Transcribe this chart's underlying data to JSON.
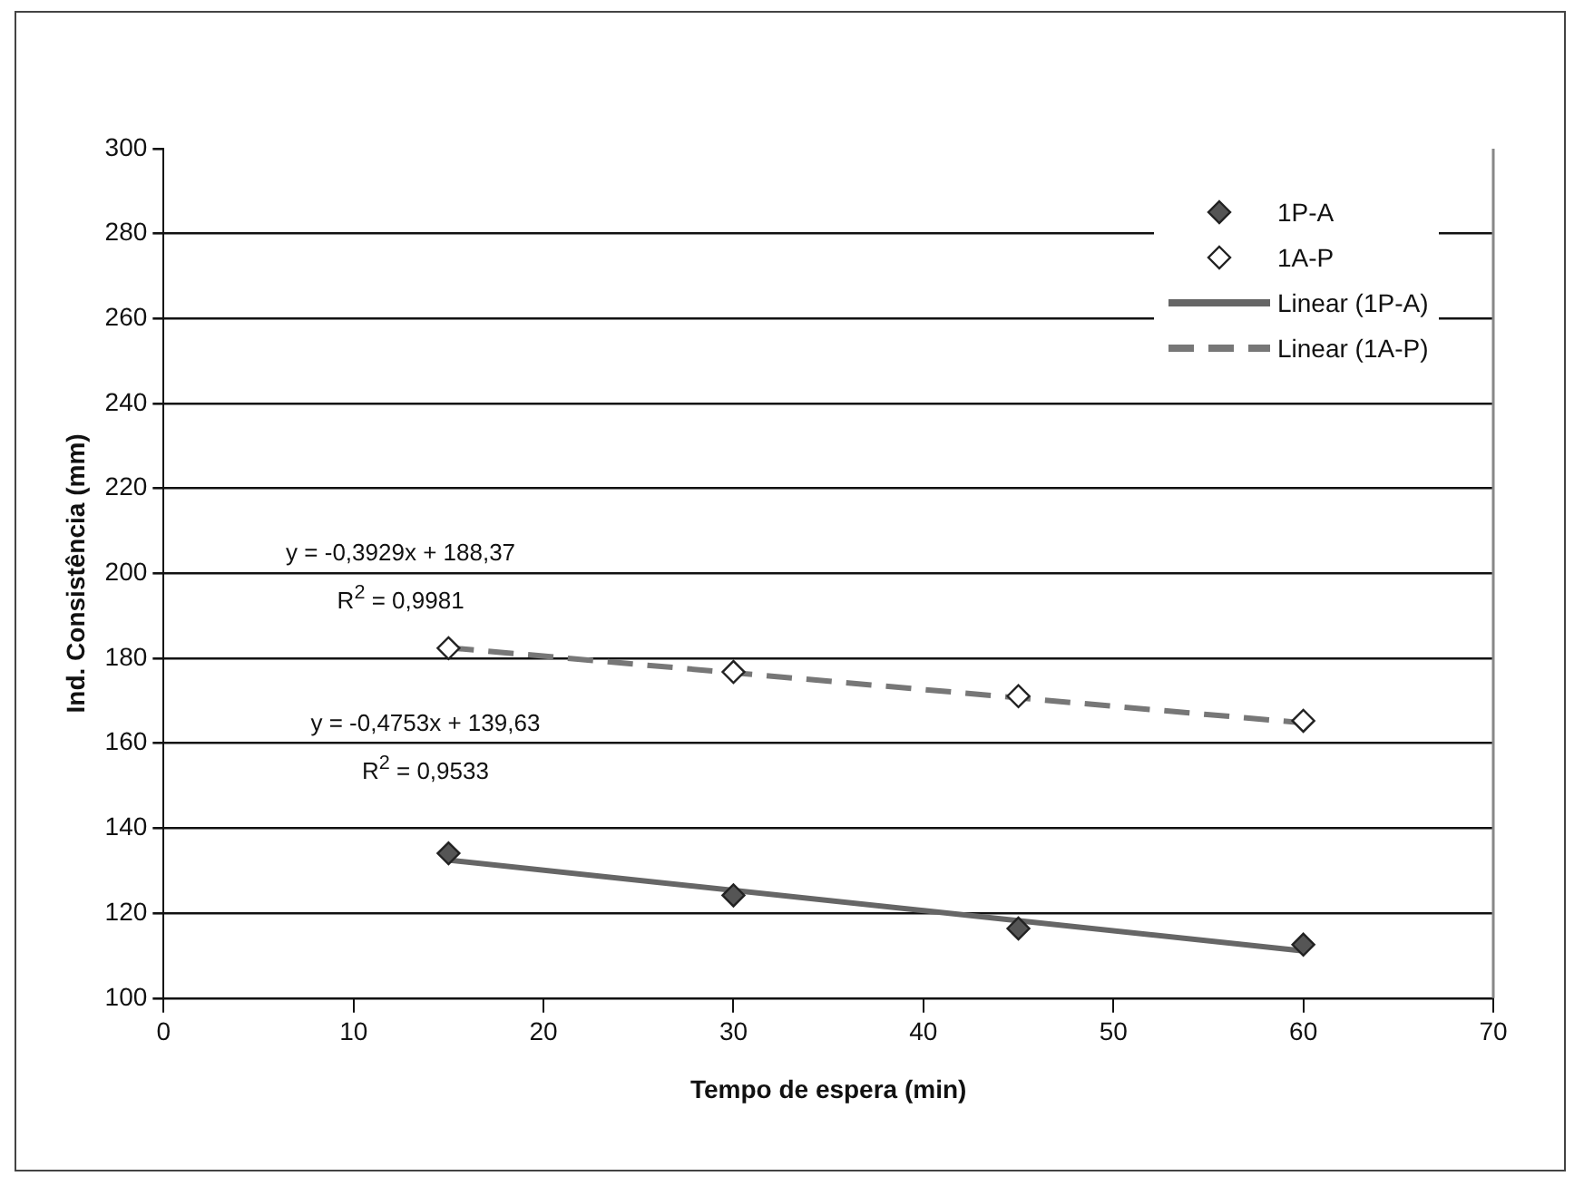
{
  "chart_data": {
    "type": "scatter",
    "xlabel": "Tempo de espera (min)",
    "ylabel": "Ind. Consistência (mm)",
    "xlim": [
      0,
      70
    ],
    "xticks": [
      0,
      10,
      20,
      30,
      40,
      50,
      60,
      70
    ],
    "ylim": [
      100,
      300
    ],
    "yticks": [
      100,
      120,
      140,
      160,
      180,
      200,
      220,
      240,
      260,
      280,
      300
    ],
    "grid": "y",
    "legend": "top right",
    "series": [
      {
        "name": "1P-A",
        "type": "scatter",
        "marker": "diamond",
        "color": "#555555",
        "x": [
          15,
          30,
          45,
          60
        ],
        "values": [
          134.1,
          124.2,
          116.4,
          112.6
        ]
      },
      {
        "name": "1A-P",
        "type": "scatter",
        "marker": "diamond",
        "color": "#ffffff",
        "x": [
          15,
          30,
          45,
          60
        ],
        "values": [
          182.4,
          176.8,
          171.1,
          165.3
        ]
      },
      {
        "name": "Linear (1P-A)",
        "type": "line",
        "marker": "none",
        "line_style": "solid",
        "color": "#666666",
        "x": [
          15,
          60
        ],
        "values": [
          132.5,
          111.1
        ]
      },
      {
        "name": "Linear (1A-P)",
        "type": "line",
        "marker": "none",
        "line_style": "dashed",
        "color": "#777777",
        "x": [
          15,
          60
        ],
        "values": [
          182.5,
          164.8
        ]
      }
    ],
    "annotations": [
      "y = -0,3929x + 188,37\nR$^{2}$ = 0,9981",
      "y = -0,4753x + 139,63\nR$^{2}$ = 0,9533"
    ]
  }
}
